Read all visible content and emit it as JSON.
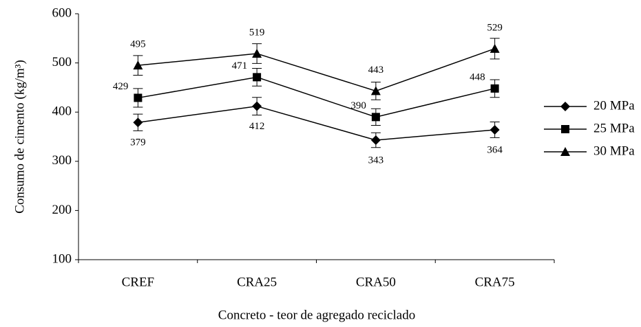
{
  "chart_data": {
    "type": "line",
    "x_label": "Concreto - teor de agregado reciclado",
    "y_label": "Consumo de cimento (kg/m³)",
    "categories": [
      "CREF",
      "CRA25",
      "CRA50",
      "CRA75"
    ],
    "series": [
      {
        "name": "20 MPa",
        "color": "#000000",
        "marker": "diamond",
        "label_position": "below",
        "values": [
          379,
          412,
          343,
          364
        ],
        "errors": [
          17,
          18,
          15,
          16
        ]
      },
      {
        "name": "25 MPa",
        "color": "#000000",
        "marker": "square",
        "label_position": "left",
        "values": [
          429,
          471,
          390,
          448
        ],
        "errors": [
          19,
          18,
          17,
          18
        ]
      },
      {
        "name": "30 MPa",
        "color": "#000000",
        "marker": "triangle",
        "label_position": "above",
        "values": [
          495,
          519,
          443,
          529
        ],
        "errors": [
          20,
          20,
          18,
          21
        ]
      }
    ],
    "ylim": [
      100,
      600
    ],
    "yticks": [
      100,
      200,
      300,
      400,
      500,
      600
    ],
    "grid": false,
    "legend": "right"
  }
}
